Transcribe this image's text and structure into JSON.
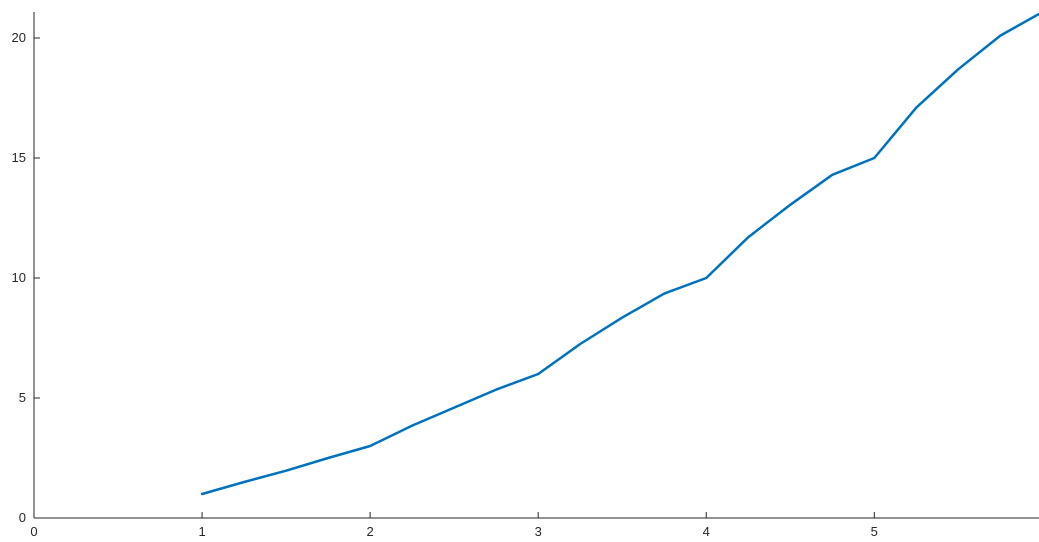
{
  "chart_data": {
    "type": "line",
    "title": "",
    "xlabel": "",
    "ylabel": "",
    "xlim": [
      0,
      5.98
    ],
    "ylim": [
      0,
      21.5
    ],
    "xticks": [
      0,
      1,
      2,
      3,
      4,
      5
    ],
    "yticks": [
      0,
      5,
      10,
      15,
      20
    ],
    "xtick_labels": [
      "0",
      "1",
      "2",
      "3",
      "4",
      "5"
    ],
    "ytick_labels": [
      "0",
      "5",
      "10",
      "15",
      "20"
    ],
    "grid": false,
    "box": false,
    "series": [
      {
        "color": "#0072BD",
        "x": [
          1.0,
          1.25,
          1.5,
          1.75,
          2.0,
          2.25,
          2.5,
          2.75,
          3.0,
          3.25,
          3.5,
          3.75,
          4.0,
          4.25,
          4.5,
          4.75,
          5.0,
          5.25,
          5.5,
          5.75,
          5.98
        ],
        "y": [
          1.0,
          1.5,
          1.97,
          2.5,
          3.0,
          3.85,
          4.6,
          5.35,
          6.0,
          7.25,
          8.35,
          9.35,
          10.0,
          11.7,
          13.05,
          14.3,
          15.0,
          17.1,
          18.7,
          20.1,
          21.0
        ]
      }
    ]
  }
}
